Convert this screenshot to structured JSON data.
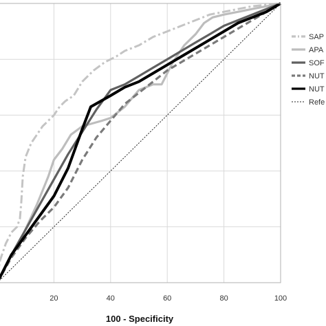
{
  "chart_data": {
    "type": "line",
    "title": "",
    "xlabel": "100 - Specificity",
    "ylabel": "",
    "xlim": [
      0,
      100
    ],
    "ylim": [
      0,
      100
    ],
    "x_ticks": [
      "20",
      "40",
      "60",
      "80",
      "100"
    ],
    "grid": true,
    "legend_position": "right",
    "series": [
      {
        "name": "SAP",
        "color": "#c4c4c4",
        "style": "dashdot",
        "points": [
          [
            0,
            2
          ],
          [
            1,
            8
          ],
          [
            3,
            14
          ],
          [
            5,
            18
          ],
          [
            7,
            20
          ],
          [
            8,
            23
          ],
          [
            8.5,
            29
          ],
          [
            9,
            38
          ],
          [
            10,
            45
          ],
          [
            12,
            50
          ],
          [
            14,
            53
          ],
          [
            16,
            56
          ],
          [
            18,
            58
          ],
          [
            20,
            60
          ],
          [
            22,
            63
          ],
          [
            24,
            65
          ],
          [
            27,
            67
          ],
          [
            30,
            72
          ],
          [
            34,
            76
          ],
          [
            38,
            79
          ],
          [
            42,
            81
          ],
          [
            45,
            83
          ],
          [
            50,
            85
          ],
          [
            55,
            88
          ],
          [
            60,
            90
          ],
          [
            65,
            92
          ],
          [
            70,
            94
          ],
          [
            75,
            96
          ],
          [
            80,
            97
          ],
          [
            85,
            98
          ],
          [
            90,
            99
          ],
          [
            100,
            100
          ]
        ]
      },
      {
        "name": "APA",
        "color": "#bdbdbd",
        "style": "solid",
        "points": [
          [
            0,
            0
          ],
          [
            4,
            8
          ],
          [
            9,
            17
          ],
          [
            14,
            28
          ],
          [
            18,
            38
          ],
          [
            20,
            44
          ],
          [
            23,
            48
          ],
          [
            26,
            53
          ],
          [
            30,
            56
          ],
          [
            37,
            58
          ],
          [
            40,
            59
          ],
          [
            45,
            63
          ],
          [
            50,
            69
          ],
          [
            55,
            71
          ],
          [
            58,
            71
          ],
          [
            62,
            79
          ],
          [
            66,
            85
          ],
          [
            70,
            89
          ],
          [
            73,
            93
          ],
          [
            76,
            95
          ],
          [
            80,
            96
          ],
          [
            85,
            97
          ],
          [
            90,
            98
          ],
          [
            95,
            99
          ],
          [
            100,
            100
          ]
        ]
      },
      {
        "name": "SOF",
        "color": "#606060",
        "style": "solid",
        "points": [
          [
            0,
            0
          ],
          [
            5,
            10
          ],
          [
            10,
            19
          ],
          [
            15,
            28
          ],
          [
            20,
            37
          ],
          [
            25,
            46
          ],
          [
            30,
            54
          ],
          [
            35,
            62
          ],
          [
            40,
            69
          ],
          [
            45,
            71
          ],
          [
            50,
            74
          ],
          [
            55,
            77
          ],
          [
            60,
            80
          ],
          [
            65,
            83
          ],
          [
            70,
            86
          ],
          [
            75,
            89
          ],
          [
            80,
            92
          ],
          [
            85,
            94
          ],
          [
            90,
            96
          ],
          [
            95,
            98
          ],
          [
            100,
            100
          ]
        ]
      },
      {
        "name": "NUT",
        "color": "#7a7a7a",
        "style": "dashed",
        "points": [
          [
            0,
            0
          ],
          [
            5,
            9
          ],
          [
            10,
            16
          ],
          [
            15,
            22
          ],
          [
            20,
            27
          ],
          [
            25,
            34
          ],
          [
            30,
            44
          ],
          [
            35,
            52
          ],
          [
            40,
            58
          ],
          [
            45,
            64
          ],
          [
            50,
            68
          ],
          [
            55,
            72
          ],
          [
            60,
            76
          ],
          [
            65,
            79
          ],
          [
            70,
            82
          ],
          [
            75,
            85
          ],
          [
            80,
            88
          ],
          [
            85,
            91
          ],
          [
            90,
            94
          ],
          [
            95,
            97
          ],
          [
            100,
            100
          ]
        ]
      },
      {
        "name": "NUT",
        "color": "#000000",
        "style": "solid",
        "points": [
          [
            0,
            0
          ],
          [
            5,
            10
          ],
          [
            10,
            17
          ],
          [
            15,
            24
          ],
          [
            20,
            31
          ],
          [
            25,
            41
          ],
          [
            30,
            55
          ],
          [
            33,
            63
          ],
          [
            40,
            67
          ],
          [
            45,
            70
          ],
          [
            50,
            72
          ],
          [
            55,
            75
          ],
          [
            60,
            78
          ],
          [
            65,
            81
          ],
          [
            70,
            84
          ],
          [
            75,
            87
          ],
          [
            80,
            90
          ],
          [
            85,
            93
          ],
          [
            90,
            95
          ],
          [
            95,
            97
          ],
          [
            100,
            100
          ]
        ]
      },
      {
        "name": "Refe",
        "color": "#222222",
        "style": "dotted",
        "points": [
          [
            0,
            0
          ],
          [
            100,
            100
          ]
        ]
      }
    ]
  }
}
